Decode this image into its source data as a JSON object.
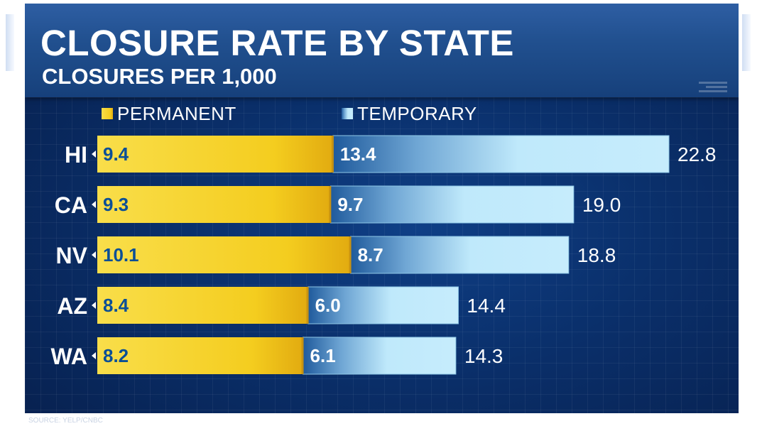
{
  "chart_data": {
    "type": "bar",
    "orientation": "horizontal",
    "stacked": true,
    "title": "CLOSURE RATE BY STATE",
    "subtitle": "CLOSURES PER 1,000",
    "categories": [
      "HI",
      "CA",
      "NV",
      "AZ",
      "WA"
    ],
    "series": [
      {
        "name": "PERMANENT",
        "values": [
          9.4,
          9.3,
          10.1,
          8.4,
          8.2
        ],
        "color": "#f4cd1f"
      },
      {
        "name": "TEMPORARY",
        "values": [
          13.4,
          9.7,
          8.7,
          6.0,
          6.1
        ],
        "color": "#bfe9fb"
      }
    ],
    "totals": [
      22.8,
      19.0,
      18.8,
      14.4,
      14.3
    ],
    "value_labels": {
      "PERMANENT": [
        "9.4",
        "9.3",
        "10.1",
        "8.4",
        "8.2"
      ],
      "TEMPORARY": [
        "13.4",
        "9.7",
        "8.7",
        "6.0",
        "6.1"
      ],
      "totals": [
        "22.8",
        "19.0",
        "18.8",
        "14.4",
        "14.3"
      ]
    },
    "xlim": [
      0,
      22.8
    ],
    "legend": "top",
    "grid": false
  },
  "colors": {
    "background": "#0a2f6a",
    "title_bar": "#21508f",
    "permanent": "#f4cd1f",
    "temporary": "#bfe9fb",
    "permanent_label": "#0b4f96",
    "temporary_label": "#ffffff"
  },
  "source": "SOURCE: YELP/CNBC"
}
